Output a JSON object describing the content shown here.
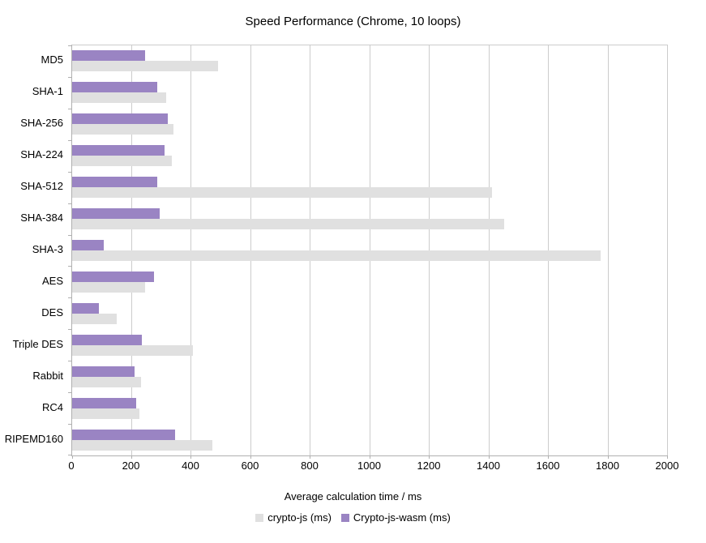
{
  "title": "Speed Performance (Chrome, 10 loops)",
  "chart_data": {
    "type": "bar",
    "orientation": "horizontal",
    "title": "Speed Performance (Chrome, 10 loops)",
    "xlabel": "Average calculation time / ms",
    "ylabel": "",
    "xlim": [
      0,
      2000
    ],
    "xticks": [
      0,
      200,
      400,
      600,
      800,
      1000,
      1200,
      1400,
      1600,
      1800,
      2000
    ],
    "grid": true,
    "legend_position": "bottom",
    "categories": [
      "MD5",
      "SHA-1",
      "SHA-256",
      "SHA-224",
      "SHA-512",
      "SHA-384",
      "SHA-3",
      "AES",
      "DES",
      "Triple DES",
      "Rabbit",
      "RC4",
      "RIPEMD160"
    ],
    "series": [
      {
        "name": "crypto-js (ms)",
        "color": "#e0e0e0",
        "values": [
          490,
          315,
          340,
          335,
          1410,
          1450,
          1775,
          245,
          150,
          405,
          230,
          225,
          470
        ]
      },
      {
        "name": "Crypto-js-wasm (ms)",
        "color": "#9a84c3",
        "values": [
          245,
          285,
          320,
          310,
          285,
          295,
          105,
          275,
          90,
          235,
          210,
          215,
          345
        ]
      }
    ],
    "bar_order_top_to_bottom": [
      "Crypto-js-wasm (ms)",
      "crypto-js (ms)"
    ]
  },
  "colors": {
    "background": "#ffffff",
    "gridline": "#cccccc",
    "axis_line": "#b0b0b0",
    "text": "#000000",
    "series_crypto_js": "#e0e0e0",
    "series_crypto_js_wasm": "#9a84c3"
  }
}
